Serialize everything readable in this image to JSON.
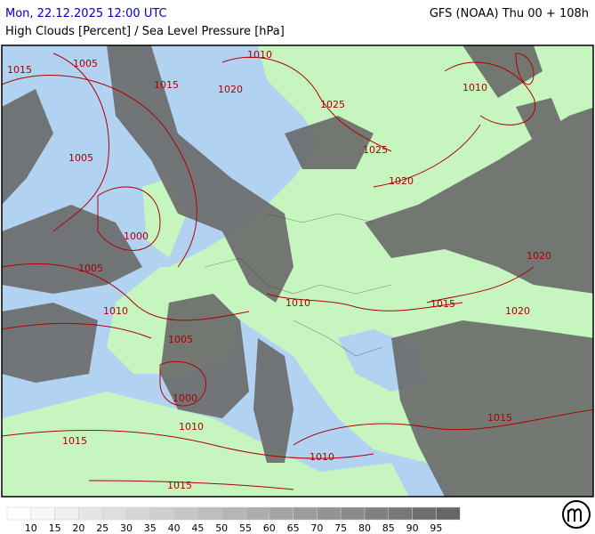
{
  "header": {
    "datetime": "Mon, 22.12.2025 12:00 UTC",
    "model": "GFS (NOAA) Thu 00 + 108h",
    "subtitle": "High Clouds [Percent] / Sea Level Pressure [hPa]"
  },
  "isobar_labels": [
    "1015",
    "1005",
    "1010",
    "1015",
    "1020",
    "1025",
    "1010",
    "1005",
    "1025",
    "1020",
    "1000",
    "1005",
    "1010",
    "1010",
    "1015",
    "1020",
    "1020",
    "1005",
    "1000",
    "1010",
    "1015",
    "1015",
    "1010",
    "1015"
  ],
  "legend": {
    "colors": [
      "#ffffff",
      "#f7f7f7",
      "#efefef",
      "#e6e6e6",
      "#dedede",
      "#d6d6d6",
      "#cecece",
      "#c6c6c6",
      "#bdbdbd",
      "#b5b5b5",
      "#adadad",
      "#a4a4a4",
      "#9c9c9c",
      "#939393",
      "#8a8a8a",
      "#818181",
      "#787878",
      "#6f6f6f",
      "#666666"
    ],
    "labels": [
      "10",
      "15",
      "20",
      "25",
      "30",
      "35",
      "40",
      "45",
      "50",
      "55",
      "60",
      "65",
      "70",
      "75",
      "80",
      "85",
      "90",
      "95"
    ]
  }
}
